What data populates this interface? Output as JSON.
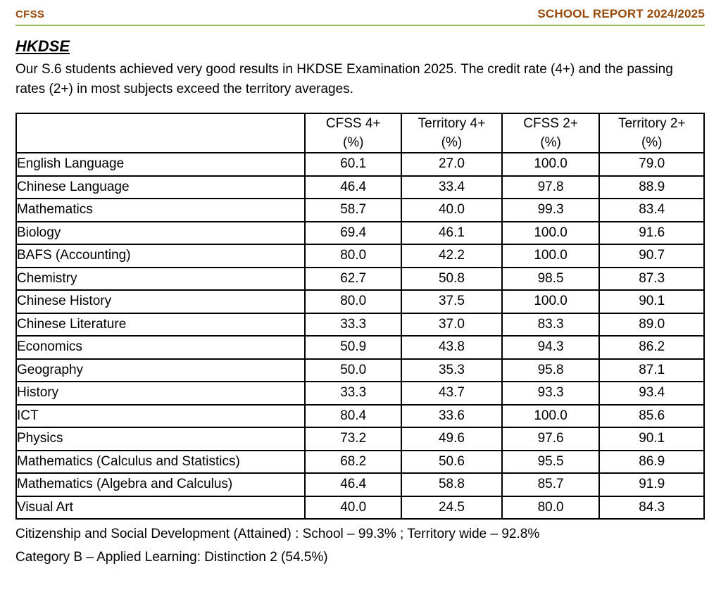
{
  "header": {
    "left": "CFSS",
    "right": "SCHOOL REPORT 2024/2025",
    "accent_color": "#974806",
    "rule_color": "#9BBB59"
  },
  "section": {
    "title": "HKDSE",
    "intro": "Our S.6 students achieved very good results in HKDSE Examination 2025. The credit rate (4+) and the passing rates (2+) in most subjects exceed the territory averages."
  },
  "table": {
    "percent_label": "(%)",
    "columns": [
      "",
      "CFSS 4+",
      "Territory 4+",
      "CFSS 2+",
      "Territory 2+"
    ],
    "rows": [
      [
        "English Language",
        "60.1",
        "27.0",
        "100.0",
        "79.0"
      ],
      [
        "Chinese Language",
        "46.4",
        "33.4",
        "97.8",
        "88.9"
      ],
      [
        "Mathematics",
        "58.7",
        "40.0",
        "99.3",
        "83.4"
      ],
      [
        "Biology",
        "69.4",
        "46.1",
        "100.0",
        "91.6"
      ],
      [
        "BAFS (Accounting)",
        "80.0",
        "42.2",
        "100.0",
        "90.7"
      ],
      [
        "Chemistry",
        "62.7",
        "50.8",
        "98.5",
        "87.3"
      ],
      [
        "Chinese History",
        "80.0",
        "37.5",
        "100.0",
        "90.1"
      ],
      [
        "Chinese Literature",
        "33.3",
        "37.0",
        "83.3",
        "89.0"
      ],
      [
        "Economics",
        "50.9",
        "43.8",
        "94.3",
        "86.2"
      ],
      [
        "Geography",
        "50.0",
        "35.3",
        "95.8",
        "87.1"
      ],
      [
        "History",
        "33.3",
        "43.7",
        "93.3",
        "93.4"
      ],
      [
        "ICT",
        "80.4",
        "33.6",
        "100.0",
        "85.6"
      ],
      [
        "Physics",
        "73.2",
        "49.6",
        "97.6",
        "90.1"
      ],
      [
        "Mathematics (Calculus and Statistics)",
        "68.2",
        "50.6",
        "95.5",
        "86.9"
      ],
      [
        "Mathematics (Algebra and Calculus)",
        "46.4",
        "58.8",
        "85.7",
        "91.9"
      ],
      [
        "Visual Art",
        "40.0",
        "24.5",
        "80.0",
        "84.3"
      ]
    ]
  },
  "footnotes": [
    "Citizenship and Social Development (Attained) : School – 99.3% ; Territory wide – 92.8%",
    "Category B – Applied Learning: Distinction 2 (54.5%)"
  ]
}
